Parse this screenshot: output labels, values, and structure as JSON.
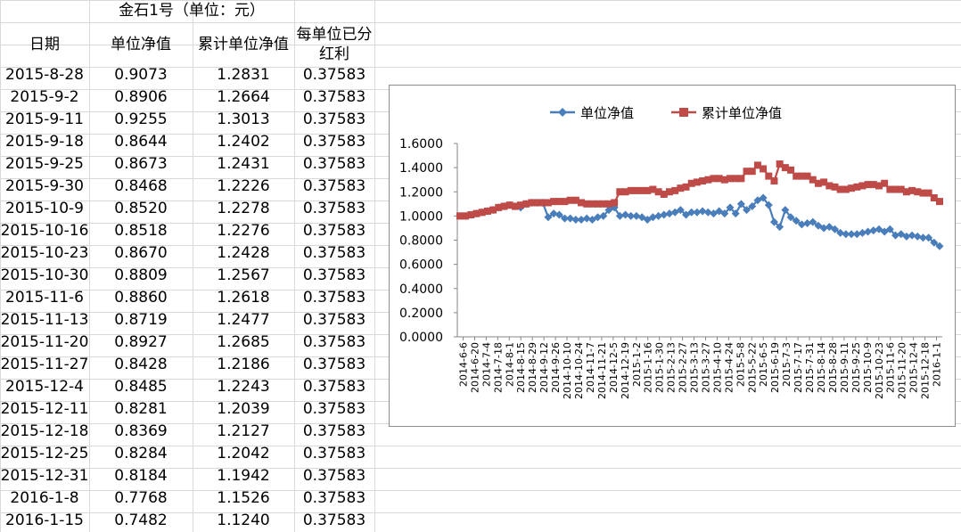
{
  "sheet": {
    "title": "金石1号（单位：元）",
    "headers": {
      "date": "日期",
      "nav": "单位净值",
      "cum_nav": "累计单位净值",
      "dividend": "每单位已分红利"
    },
    "rows": [
      {
        "date": "2015-8-28",
        "nav": "0.9073",
        "cum": "1.2831",
        "div": "0.37583"
      },
      {
        "date": "2015-9-2",
        "nav": "0.8906",
        "cum": "1.2664",
        "div": "0.37583"
      },
      {
        "date": "2015-9-11",
        "nav": "0.9255",
        "cum": "1.3013",
        "div": "0.37583"
      },
      {
        "date": "2015-9-18",
        "nav": "0.8644",
        "cum": "1.2402",
        "div": "0.37583"
      },
      {
        "date": "2015-9-25",
        "nav": "0.8673",
        "cum": "1.2431",
        "div": "0.37583"
      },
      {
        "date": "2015-9-30",
        "nav": "0.8468",
        "cum": "1.2226",
        "div": "0.37583"
      },
      {
        "date": "2015-10-9",
        "nav": "0.8520",
        "cum": "1.2278",
        "div": "0.37583"
      },
      {
        "date": "2015-10-16",
        "nav": "0.8518",
        "cum": "1.2276",
        "div": "0.37583"
      },
      {
        "date": "2015-10-23",
        "nav": "0.8670",
        "cum": "1.2428",
        "div": "0.37583"
      },
      {
        "date": "2015-10-30",
        "nav": "0.8809",
        "cum": "1.2567",
        "div": "0.37583"
      },
      {
        "date": "2015-11-6",
        "nav": "0.8860",
        "cum": "1.2618",
        "div": "0.37583"
      },
      {
        "date": "2015-11-13",
        "nav": "0.8719",
        "cum": "1.2477",
        "div": "0.37583"
      },
      {
        "date": "2015-11-20",
        "nav": "0.8927",
        "cum": "1.2685",
        "div": "0.37583"
      },
      {
        "date": "2015-11-27",
        "nav": "0.8428",
        "cum": "1.2186",
        "div": "0.37583"
      },
      {
        "date": "2015-12-4",
        "nav": "0.8485",
        "cum": "1.2243",
        "div": "0.37583"
      },
      {
        "date": "2015-12-11",
        "nav": "0.8281",
        "cum": "1.2039",
        "div": "0.37583"
      },
      {
        "date": "2015-12-18",
        "nav": "0.8369",
        "cum": "1.2127",
        "div": "0.37583"
      },
      {
        "date": "2015-12-25",
        "nav": "0.8284",
        "cum": "1.2042",
        "div": "0.37583"
      },
      {
        "date": "2015-12-31",
        "nav": "0.8184",
        "cum": "1.1942",
        "div": "0.37583"
      },
      {
        "date": "2016-1-8",
        "nav": "0.7768",
        "cum": "1.1526",
        "div": "0.37583"
      },
      {
        "date": "2016-1-15",
        "nav": "0.7482",
        "cum": "1.1240",
        "div": "0.37583"
      }
    ]
  },
  "chart_data": {
    "type": "line",
    "legend_position": "top",
    "grid": false,
    "y_ticks": [
      "0.0000",
      "0.2000",
      "0.4000",
      "0.6000",
      "0.8000",
      "1.0000",
      "1.2000",
      "1.4000",
      "1.6000"
    ],
    "ylim": [
      0,
      1.6
    ],
    "x_tick_labels": [
      "2014-6-6",
      "2014-6-20",
      "2014-7-4",
      "2014-7-18",
      "2014-8-1",
      "2014-8-15",
      "2014-8-29",
      "2014-9-12",
      "2014-9-26",
      "2014-10-10",
      "2014-10-24",
      "2014-11-7",
      "2014-11-21",
      "2014-12-5",
      "2014-12-19",
      "2015-1-2",
      "2015-1-16",
      "2015-1-30",
      "2015-2-13",
      "2015-2-27",
      "2015-3-13",
      "2015-3-27",
      "2015-4-10",
      "2015-4-24",
      "2015-5-8",
      "2015-5-22",
      "2015-6-5",
      "2015-6-19",
      "2015-7-3",
      "2015-7-17",
      "2015-7-31",
      "2015-8-14",
      "2015-8-28",
      "2015-9-11",
      "2015-9-25",
      "2015-10-9",
      "2015-10-23",
      "2015-11-6",
      "2015-11-20",
      "2015-12-4",
      "2015-12-18",
      "2016-1-1"
    ],
    "series": [
      {
        "name": "单位净值",
        "color": "#4a7ebb",
        "marker": "diamond",
        "values": [
          1.0,
          1.0,
          1.01,
          1.02,
          1.03,
          1.04,
          1.05,
          1.07,
          1.08,
          1.09,
          1.08,
          1.07,
          1.1,
          1.11,
          1.11,
          1.11,
          0.99,
          1.02,
          1.01,
          0.98,
          0.98,
          0.97,
          0.97,
          0.98,
          0.97,
          0.99,
          1.0,
          1.05,
          1.07,
          1.0,
          1.01,
          1.0,
          1.0,
          0.99,
          0.97,
          0.99,
          1.0,
          1.01,
          1.02,
          1.03,
          1.05,
          1.01,
          1.03,
          1.03,
          1.04,
          1.03,
          1.02,
          1.04,
          1.02,
          1.07,
          1.02,
          1.1,
          1.05,
          1.08,
          1.13,
          1.15,
          1.09,
          0.95,
          0.91,
          1.05,
          0.99,
          0.96,
          0.93,
          0.94,
          0.95,
          0.92,
          0.9,
          0.91,
          0.89,
          0.86,
          0.85,
          0.85,
          0.85,
          0.86,
          0.87,
          0.88,
          0.89,
          0.87,
          0.89,
          0.84,
          0.85,
          0.83,
          0.84,
          0.83,
          0.82,
          0.82,
          0.78,
          0.75
        ]
      },
      {
        "name": "累计单位净值",
        "color": "#be4b48",
        "marker": "square",
        "values": [
          1.0,
          1.0,
          1.01,
          1.02,
          1.03,
          1.04,
          1.05,
          1.07,
          1.08,
          1.09,
          1.08,
          1.09,
          1.1,
          1.11,
          1.11,
          1.11,
          1.11,
          1.12,
          1.12,
          1.12,
          1.13,
          1.13,
          1.11,
          1.1,
          1.1,
          1.1,
          1.1,
          1.1,
          1.11,
          1.2,
          1.2,
          1.21,
          1.21,
          1.21,
          1.21,
          1.22,
          1.2,
          1.18,
          1.2,
          1.21,
          1.23,
          1.24,
          1.27,
          1.28,
          1.29,
          1.3,
          1.31,
          1.31,
          1.3,
          1.31,
          1.31,
          1.31,
          1.37,
          1.37,
          1.42,
          1.39,
          1.33,
          1.29,
          1.43,
          1.4,
          1.38,
          1.33,
          1.33,
          1.33,
          1.3,
          1.27,
          1.28,
          1.25,
          1.24,
          1.22,
          1.22,
          1.23,
          1.24,
          1.25,
          1.26,
          1.26,
          1.25,
          1.27,
          1.22,
          1.22,
          1.22,
          1.2,
          1.21,
          1.2,
          1.19,
          1.19,
          1.15,
          1.12
        ]
      }
    ]
  }
}
